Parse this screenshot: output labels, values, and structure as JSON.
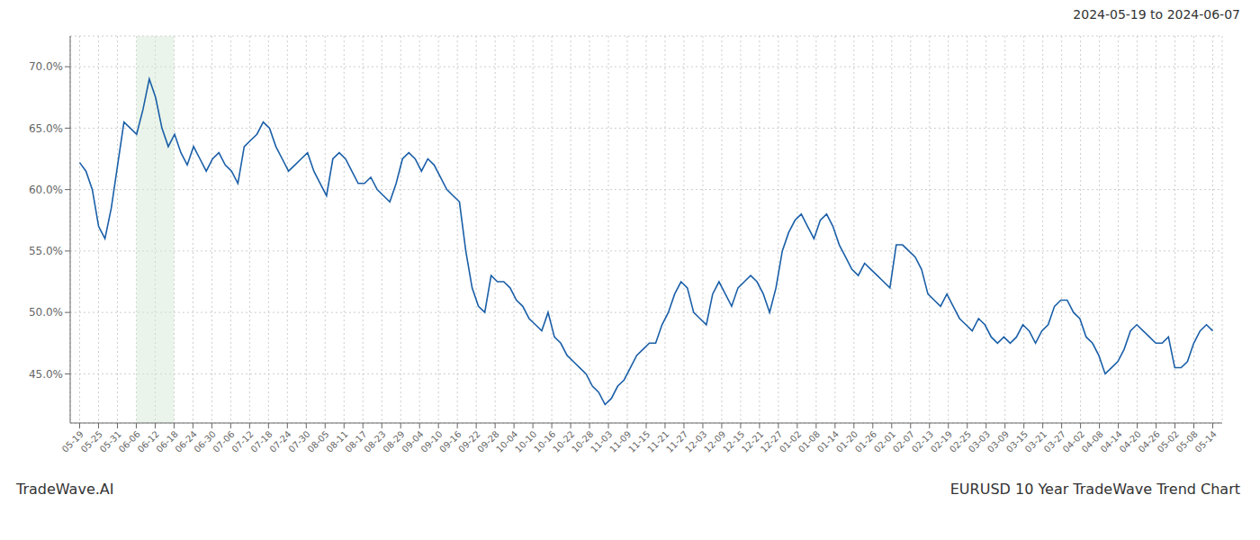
{
  "chart_data": {
    "type": "line",
    "title": "EURUSD 10 Year TradeWave Trend Chart",
    "subtitle": "2024-05-19 to 2024-06-07",
    "annotations": [
      "TradeWave.AI"
    ],
    "color": "#1a5fa8",
    "grid": true,
    "xlim": [
      -0.5,
      60.5
    ],
    "xticks": [
      {
        "value": 0,
        "label": "05-19"
      },
      {
        "value": 1,
        "label": "05-25"
      },
      {
        "value": 2,
        "label": "05-31"
      },
      {
        "value": 3,
        "label": "06-06"
      },
      {
        "value": 4,
        "label": "06-12"
      },
      {
        "value": 5,
        "label": "06-18"
      },
      {
        "value": 6,
        "label": "06-24"
      },
      {
        "value": 7,
        "label": "06-30"
      },
      {
        "value": 8,
        "label": "07-06"
      },
      {
        "value": 9,
        "label": "07-12"
      },
      {
        "value": 10,
        "label": "07-18"
      },
      {
        "value": 11,
        "label": "07-24"
      },
      {
        "value": 12,
        "label": "07-30"
      },
      {
        "value": 13,
        "label": "08-05"
      },
      {
        "value": 14,
        "label": "08-11"
      },
      {
        "value": 15,
        "label": "08-17"
      },
      {
        "value": 16,
        "label": "08-23"
      },
      {
        "value": 17,
        "label": "08-29"
      },
      {
        "value": 18,
        "label": "09-04"
      },
      {
        "value": 19,
        "label": "09-10"
      },
      {
        "value": 20,
        "label": "09-16"
      },
      {
        "value": 21,
        "label": "09-22"
      },
      {
        "value": 22,
        "label": "09-28"
      },
      {
        "value": 23,
        "label": "10-04"
      },
      {
        "value": 24,
        "label": "10-10"
      },
      {
        "value": 25,
        "label": "10-16"
      },
      {
        "value": 26,
        "label": "10-22"
      },
      {
        "value": 27,
        "label": "10-28"
      },
      {
        "value": 28,
        "label": "11-03"
      },
      {
        "value": 29,
        "label": "11-09"
      },
      {
        "value": 30,
        "label": "11-15"
      },
      {
        "value": 31,
        "label": "11-21"
      },
      {
        "value": 32,
        "label": "11-27"
      },
      {
        "value": 33,
        "label": "12-03"
      },
      {
        "value": 34,
        "label": "12-09"
      },
      {
        "value": 35,
        "label": "12-15"
      },
      {
        "value": 36,
        "label": "12-21"
      },
      {
        "value": 37,
        "label": "12-27"
      },
      {
        "value": 38,
        "label": "01-02"
      },
      {
        "value": 39,
        "label": "01-08"
      },
      {
        "value": 40,
        "label": "01-14"
      },
      {
        "value": 41,
        "label": "01-20"
      },
      {
        "value": 42,
        "label": "01-26"
      },
      {
        "value": 43,
        "label": "02-01"
      },
      {
        "value": 44,
        "label": "02-07"
      },
      {
        "value": 45,
        "label": "02-13"
      },
      {
        "value": 46,
        "label": "02-19"
      },
      {
        "value": 47,
        "label": "02-25"
      },
      {
        "value": 48,
        "label": "03-03"
      },
      {
        "value": 49,
        "label": "03-09"
      },
      {
        "value": 50,
        "label": "03-15"
      },
      {
        "value": 51,
        "label": "03-21"
      },
      {
        "value": 52,
        "label": "03-27"
      },
      {
        "value": 53,
        "label": "04-02"
      },
      {
        "value": 54,
        "label": "04-08"
      },
      {
        "value": 55,
        "label": "04-14"
      },
      {
        "value": 56,
        "label": "04-20"
      },
      {
        "value": 57,
        "label": "04-26"
      },
      {
        "value": 58,
        "label": "05-02"
      },
      {
        "value": 59,
        "label": "05-08"
      },
      {
        "value": 60,
        "label": "05-14"
      }
    ],
    "ylim": [
      41.0,
      72.5
    ],
    "yticks": [
      {
        "value": 45.0,
        "label": "45.0%"
      },
      {
        "value": 50.0,
        "label": "50.0%"
      },
      {
        "value": 55.0,
        "label": "55.0%"
      },
      {
        "value": 60.0,
        "label": "60.0%"
      },
      {
        "value": 65.0,
        "label": "65.0%"
      },
      {
        "value": 70.0,
        "label": "70.0%"
      }
    ],
    "shade": {
      "x": [
        3,
        5
      ],
      "color": "#d6ead6"
    },
    "values": [
      62.2,
      61.5,
      60.0,
      57.0,
      56.0,
      58.5,
      62.0,
      65.5,
      65.0,
      64.5,
      66.5,
      69.0,
      67.5,
      65.0,
      63.5,
      64.5,
      63.0,
      62.0,
      63.5,
      62.5,
      61.5,
      62.5,
      63.0,
      62.0,
      61.5,
      60.5,
      63.5,
      64.0,
      64.5,
      65.5,
      65.0,
      63.5,
      62.5,
      61.5,
      62.0,
      62.5,
      63.0,
      61.5,
      60.5,
      59.5,
      62.5,
      63.0,
      62.5,
      61.5,
      60.5,
      60.5,
      61.0,
      60.0,
      59.5,
      59.0,
      60.5,
      62.5,
      63.0,
      62.5,
      61.5,
      62.5,
      62.0,
      61.0,
      60.0,
      59.5,
      59.0,
      55.0,
      52.0,
      50.5,
      50.0,
      53.0,
      52.5,
      52.5,
      52.0,
      51.0,
      50.5,
      49.5,
      49.0,
      48.5,
      50.0,
      48.0,
      47.5,
      46.5,
      46.0,
      45.5,
      45.0,
      44.0,
      43.5,
      42.5,
      43.0,
      44.0,
      44.5,
      45.5,
      46.5,
      47.0,
      47.5,
      47.5,
      49.0,
      50.0,
      51.5,
      52.5,
      52.0,
      50.0,
      49.5,
      49.0,
      51.5,
      52.5,
      51.5,
      50.5,
      52.0,
      52.5,
      53.0,
      52.5,
      51.5,
      50.0,
      52.0,
      55.0,
      56.5,
      57.5,
      58.0,
      57.0,
      56.0,
      57.5,
      58.0,
      57.0,
      55.5,
      54.5,
      53.5,
      53.0,
      54.0,
      53.5,
      53.0,
      52.5,
      52.0,
      55.5,
      55.5,
      55.0,
      54.5,
      53.5,
      51.5,
      51.0,
      50.5,
      51.5,
      50.5,
      49.5,
      49.0,
      48.5,
      49.5,
      49.0,
      48.0,
      47.5,
      48.0,
      47.5,
      48.0,
      49.0,
      48.5,
      47.5,
      48.5,
      49.0,
      50.5,
      51.0,
      51.0,
      50.0,
      49.5,
      48.0,
      47.5,
      46.5,
      45.0,
      45.5,
      46.0,
      47.0,
      48.5,
      49.0,
      48.5,
      48.0,
      47.5,
      47.5,
      48.0,
      45.5,
      45.5,
      46.0,
      47.5,
      48.5,
      49.0,
      48.5
    ]
  }
}
